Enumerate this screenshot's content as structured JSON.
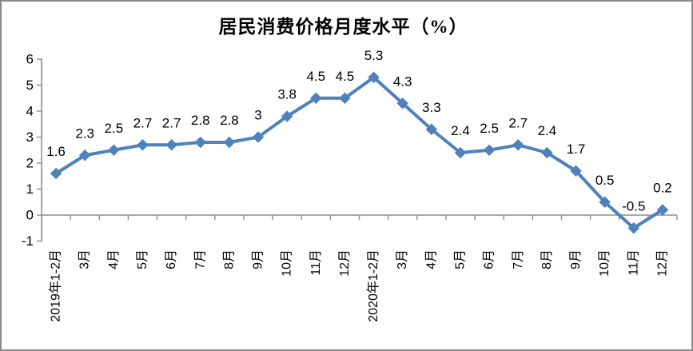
{
  "chart_data": {
    "type": "line",
    "title": "居民消费价格月度水平（%）",
    "categories": [
      "2019年1-2月",
      "3月",
      "4月",
      "5月",
      "6月",
      "7月",
      "8月",
      "9月",
      "10月",
      "11月",
      "12月",
      "2020年1-2月",
      "3月",
      "4月",
      "5月",
      "6月",
      "7月",
      "8月",
      "9月",
      "10月",
      "11月",
      "12月"
    ],
    "values": [
      1.6,
      2.3,
      2.5,
      2.7,
      2.7,
      2.8,
      2.8,
      3,
      3.8,
      4.5,
      4.5,
      5.3,
      4.3,
      3.3,
      2.4,
      2.5,
      2.7,
      2.4,
      1.7,
      0.5,
      -0.5,
      0.2
    ],
    "point_labels": [
      "1.6",
      "2.3",
      "2.5",
      "2.7",
      "2.7",
      "2.8",
      "2.8",
      "3",
      "3.8",
      "4.5",
      "4.5",
      "5.3",
      "4.3",
      "3.3",
      "2.4",
      "2.5",
      "2.7",
      "2.4",
      "1.7",
      "0.5",
      "-0.5",
      "0.2"
    ],
    "yticks": [
      6,
      5,
      4,
      3,
      2,
      1,
      0,
      -1
    ],
    "ylim": [
      -1,
      6
    ],
    "xlabel": "",
    "ylabel": "",
    "grid": false,
    "legend_position": "none",
    "series_color": "#4F81BD",
    "axis_color": "#8e8e8e",
    "text_color": "#000000",
    "frame_border_color": "#8a8a8a"
  }
}
